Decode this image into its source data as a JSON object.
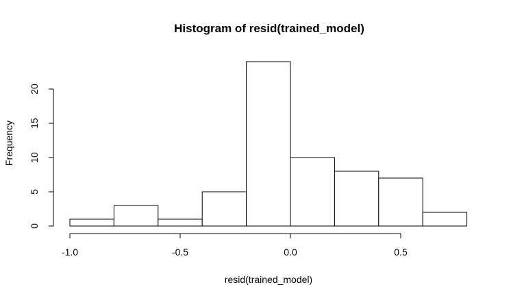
{
  "chart_data": {
    "type": "bar",
    "title": "Histogram of resid(trained_model)",
    "xlabel": "resid(trained_model)",
    "ylabel": "Frequency",
    "bins": [
      {
        "from": -1.0,
        "to": -0.8,
        "count": 1
      },
      {
        "from": -0.8,
        "to": -0.6,
        "count": 3
      },
      {
        "from": -0.6,
        "to": -0.4,
        "count": 1
      },
      {
        "from": -0.4,
        "to": -0.2,
        "count": 5
      },
      {
        "from": -0.2,
        "to": 0.0,
        "count": 24
      },
      {
        "from": 0.0,
        "to": 0.2,
        "count": 10
      },
      {
        "from": 0.2,
        "to": 0.4,
        "count": 8
      },
      {
        "from": 0.4,
        "to": 0.6,
        "count": 7
      },
      {
        "from": 0.6,
        "to": 0.8,
        "count": 2
      }
    ],
    "xticks": [
      {
        "value": -1.0,
        "label": "-1.0"
      },
      {
        "value": -0.5,
        "label": "-0.5"
      },
      {
        "value": 0.0,
        "label": "0.0"
      },
      {
        "value": 0.5,
        "label": "0.5"
      }
    ],
    "yticks": [
      {
        "value": 0,
        "label": "0"
      },
      {
        "value": 5,
        "label": "5"
      },
      {
        "value": 10,
        "label": "10"
      },
      {
        "value": 15,
        "label": "15"
      },
      {
        "value": 20,
        "label": "20"
      }
    ],
    "xlim": [
      -1.0,
      0.8
    ],
    "ylim": [
      0,
      24
    ],
    "grid": false,
    "legend": "none"
  }
}
